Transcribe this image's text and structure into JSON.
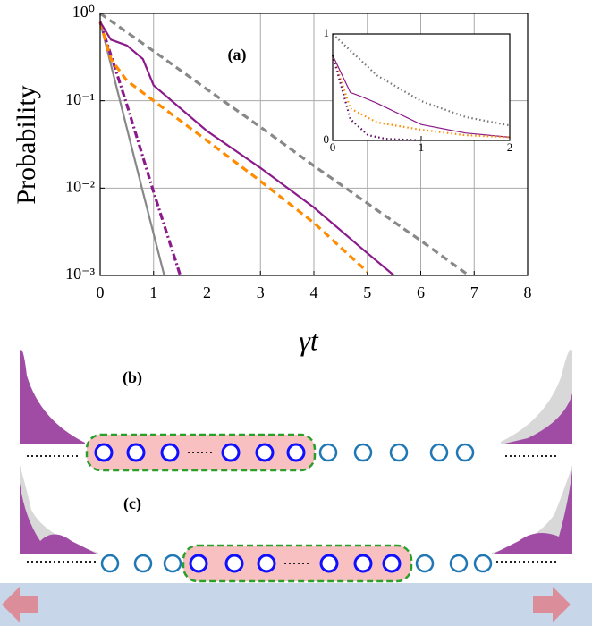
{
  "chart_data": [
    {
      "type": "line",
      "annotation": "(a)",
      "ylabel": "Probability",
      "xlabel": "γt",
      "xlim": [
        0,
        8
      ],
      "xticks": [
        0,
        1,
        2,
        3,
        4,
        5,
        6,
        7,
        8
      ],
      "ylim": [
        0.001,
        1
      ],
      "log_y": true,
      "grid": true,
      "yticks": [
        {
          "value": 1,
          "label": "10⁰"
        },
        {
          "value": 0.1,
          "label": "10⁻¹"
        },
        {
          "value": 0.01,
          "label": "10⁻²"
        },
        {
          "value": 0.001,
          "label": "10⁻³"
        }
      ],
      "series": [
        {
          "color": "#888888",
          "style": "dashed",
          "x": [
            0,
            1,
            2,
            3,
            4,
            5,
            6,
            6.9
          ],
          "values": [
            1,
            0.37,
            0.135,
            0.05,
            0.018,
            0.0067,
            0.0025,
            0.001
          ]
        },
        {
          "color": "#888888",
          "style": "solid",
          "x": [
            0,
            0.4,
            0.8,
            1.2
          ],
          "values": [
            0.8,
            0.085,
            0.009,
            0.001
          ]
        },
        {
          "color": "#8b1a8b",
          "style": "dashdot",
          "x": [
            0,
            0.5,
            1,
            1.5
          ],
          "values": [
            0.8,
            0.09,
            0.009,
            0.001
          ]
        },
        {
          "color": "#ff8c00",
          "style": "dashed",
          "x": [
            0,
            0.2,
            0.5,
            1,
            2,
            3,
            4,
            5
          ],
          "values": [
            0.8,
            0.3,
            0.17,
            0.1,
            0.035,
            0.012,
            0.004,
            0.0011
          ]
        },
        {
          "color": "#8b1a8b",
          "style": "solid",
          "x": [
            0,
            0.2,
            0.5,
            0.8,
            1,
            2,
            3,
            4,
            5,
            5.5
          ],
          "values": [
            0.8,
            0.5,
            0.43,
            0.3,
            0.15,
            0.045,
            0.017,
            0.006,
            0.0018,
            0.001
          ]
        }
      ]
    },
    {
      "type": "line",
      "xlim": [
        0,
        2
      ],
      "xticks": [
        0,
        1,
        2
      ],
      "ylim": [
        0,
        1
      ],
      "yticks": [
        0,
        1
      ],
      "log_y": false,
      "grid": false,
      "series": [
        {
          "color": "#777777",
          "style": "dotted",
          "x": [
            0,
            0.5,
            1,
            1.5,
            2
          ],
          "values": [
            1,
            0.61,
            0.37,
            0.22,
            0.14
          ]
        },
        {
          "color": "#8b1a8b",
          "style": "solid",
          "x": [
            0,
            0.2,
            0.3,
            0.5,
            1,
            1.5,
            2
          ],
          "values": [
            0.8,
            0.45,
            0.42,
            0.35,
            0.15,
            0.07,
            0.03
          ]
        },
        {
          "color": "#ff8c00",
          "style": "dotted",
          "x": [
            0,
            0.2,
            0.5,
            1,
            1.5,
            2
          ],
          "values": [
            0.8,
            0.3,
            0.17,
            0.1,
            0.05,
            0.03
          ]
        },
        {
          "color": "#5a1060",
          "style": "dotted",
          "x": [
            0,
            0.2,
            0.4,
            0.6,
            1
          ],
          "values": [
            0.8,
            0.2,
            0.05,
            0.015,
            0.001
          ]
        }
      ]
    }
  ],
  "panels": [
    {
      "label": "(b)"
    },
    {
      "label": "(c)"
    }
  ]
}
